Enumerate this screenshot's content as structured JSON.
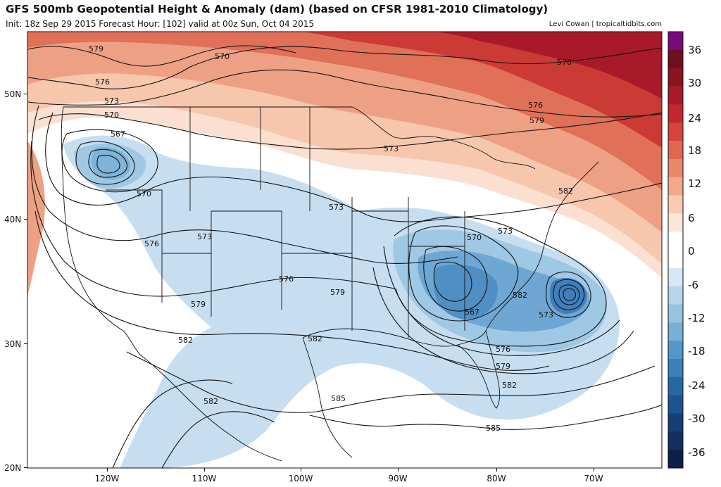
{
  "header": {
    "title": "GFS 500mb Geopotential Height & Anomaly (dam) (based on CFSR 1981-2010 Climatology)",
    "subtitle": "Init: 18z Sep 29 2015   Forecast Hour: [102]   valid at 00z Sun, Oct 04 2015",
    "credit": "Levi Cowan | tropicaltidbits.com"
  },
  "axes": {
    "lat_labels": [
      "50N",
      "40N",
      "30N",
      "20N"
    ],
    "lon_labels": [
      "120W",
      "110W",
      "100W",
      "90W",
      "80W",
      "70W"
    ]
  },
  "colorbar": {
    "labels": [
      "36",
      "30",
      "24",
      "18",
      "12",
      "6",
      "0",
      "-6",
      "-12",
      "-18",
      "-24",
      "-30",
      "-36"
    ],
    "colors": [
      "#7a0a7a",
      "#6e0f1e",
      "#8c1420",
      "#a8192a",
      "#c2262f",
      "#d4433c",
      "#e06650",
      "#ea8868",
      "#f2a98a",
      "#f8cbb2",
      "#fde6d8",
      "#ffffff",
      "#ffffff",
      "#d6e8f3",
      "#b7d6ea",
      "#98c3e0",
      "#77afd6",
      "#5597c9",
      "#3b80bb",
      "#2767a6",
      "#1c528f",
      "#163f78",
      "#112f5f",
      "#0c2048"
    ]
  },
  "contours": {
    "labels": [
      "579",
      "576",
      "573",
      "570",
      "567",
      "570",
      "570",
      "573",
      "576",
      "579",
      "582",
      "582",
      "576",
      "573",
      "573",
      "570",
      "573",
      "576",
      "579",
      "582",
      "582",
      "582",
      "585",
      "585",
      "567",
      "573",
      "576",
      "579",
      "582",
      "576",
      "579"
    ]
  },
  "colors": {
    "positive_strong": "#b8202a",
    "positive_mid": "#e07058",
    "positive_light": "#f6c6ad",
    "negative_light": "#b9d7ea",
    "negative_mid": "#7fb4d8",
    "negative_strong": "#3f7fbb"
  }
}
